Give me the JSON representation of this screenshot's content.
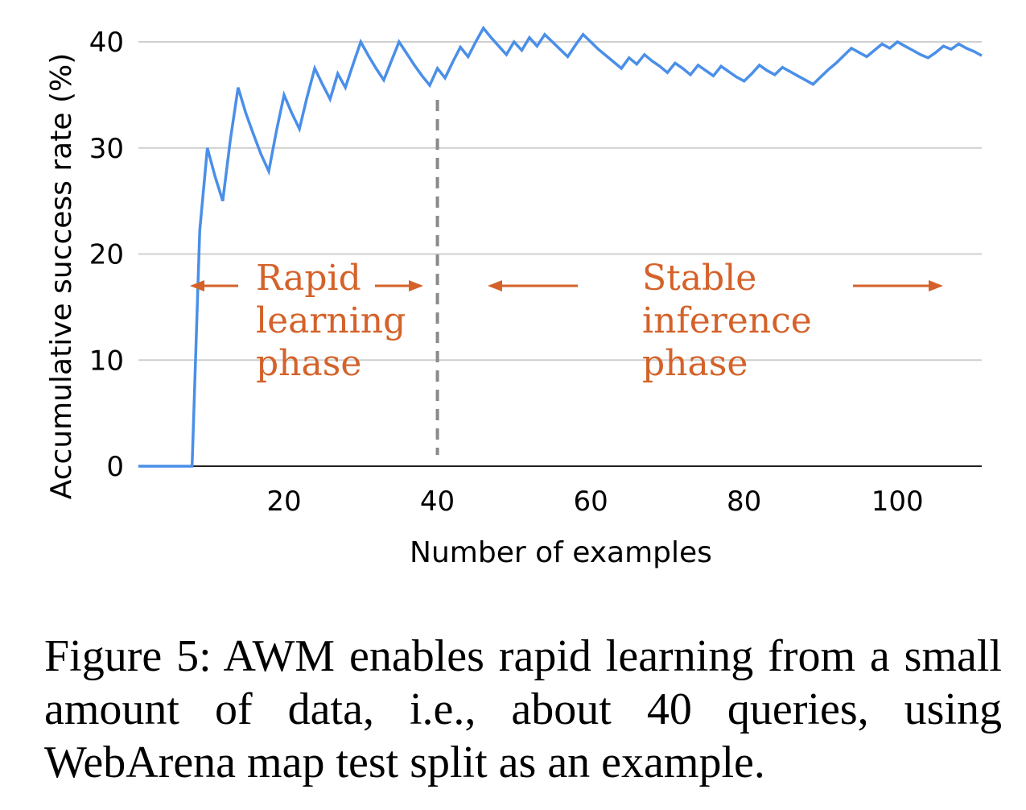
{
  "chart_data": {
    "type": "line",
    "xlabel": "Number of examples",
    "ylabel": "Accumulative success rate (%)",
    "xlim": [
      1,
      111
    ],
    "ylim": [
      0,
      40
    ],
    "xticks": [
      20,
      40,
      60,
      80,
      100
    ],
    "yticks": [
      0,
      10,
      20,
      30,
      40
    ],
    "grid": "horizontal",
    "line_color": "#4a8fe8",
    "series": [
      {
        "x": [
          1,
          2,
          3,
          4,
          5,
          6,
          7,
          8,
          9,
          10,
          11,
          12,
          13,
          14,
          15,
          16,
          17,
          18,
          19,
          20,
          21,
          22,
          23,
          24,
          25,
          26,
          27,
          28,
          29,
          30,
          31,
          32,
          33,
          34,
          35,
          36,
          37,
          38,
          39,
          40,
          41,
          42,
          43,
          44,
          45,
          46,
          47,
          48,
          49,
          50,
          51,
          52,
          53,
          54,
          55,
          56,
          57,
          58,
          59,
          60,
          61,
          62,
          63,
          64,
          65,
          66,
          67,
          68,
          69,
          70,
          71,
          72,
          73,
          74,
          75,
          76,
          77,
          78,
          79,
          80,
          81,
          82,
          83,
          84,
          85,
          86,
          87,
          88,
          89,
          90,
          91,
          92,
          93,
          94,
          95,
          96,
          97,
          98,
          99,
          100,
          101,
          102,
          103,
          104,
          105,
          106,
          107,
          108,
          109,
          110,
          111
        ],
        "values": [
          0,
          0,
          0,
          0,
          0,
          0,
          0,
          0,
          22.2,
          30.0,
          27.3,
          25.0,
          30.8,
          35.7,
          33.3,
          31.3,
          29.4,
          27.8,
          31.6,
          35.0,
          33.3,
          31.8,
          34.8,
          37.5,
          36.0,
          34.6,
          37.0,
          35.7,
          37.9,
          40.0,
          38.7,
          37.5,
          36.4,
          38.2,
          40.0,
          38.9,
          37.8,
          36.8,
          35.9,
          37.5,
          36.6,
          38.1,
          39.5,
          38.6,
          40.0,
          41.3,
          40.4,
          39.6,
          38.8,
          40.0,
          39.2,
          40.4,
          39.6,
          40.7,
          40.0,
          39.3,
          38.6,
          39.7,
          40.7,
          40.0,
          39.3,
          38.7,
          38.1,
          37.5,
          38.5,
          37.9,
          38.8,
          38.2,
          37.7,
          37.1,
          38.0,
          37.5,
          36.9,
          37.8,
          37.3,
          36.8,
          37.7,
          37.2,
          36.7,
          36.3,
          37.0,
          37.8,
          37.3,
          36.9,
          37.6,
          37.2,
          36.8,
          36.4,
          36.0,
          36.7,
          37.4,
          38.0,
          38.7,
          39.4,
          39.0,
          38.6,
          39.2,
          39.8,
          39.4,
          40.0,
          39.6,
          39.2,
          38.8,
          38.5,
          39.0,
          39.6,
          39.3,
          39.8,
          39.4,
          39.1,
          38.7
        ]
      }
    ],
    "divider_x": 40,
    "annotations": [
      {
        "lines": [
          "Rapid",
          "learning",
          "phase"
        ]
      },
      {
        "lines": [
          "Stable",
          "inference",
          "phase"
        ]
      }
    ],
    "annotation_color": "#d4622a"
  },
  "caption": "Figure 5:  AWM enables rapid learning from a small amount of data, i.e., about 40 queries, using WebArena map test split as an example."
}
